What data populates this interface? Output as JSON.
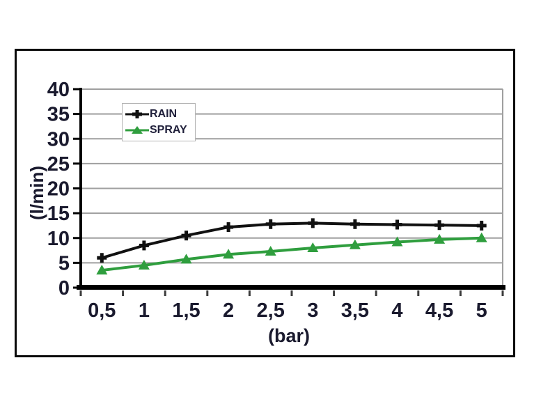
{
  "chart_data": {
    "type": "line",
    "title": "",
    "xlabel": "(bar)",
    "ylabel": "(l/min)",
    "x_tick_labels": [
      "0,5",
      "1",
      "1,5",
      "2",
      "2,5",
      "3",
      "3,5",
      "4",
      "4,5",
      "5"
    ],
    "x_values": [
      0.5,
      1,
      1.5,
      2,
      2.5,
      3,
      3.5,
      4,
      4.5,
      5
    ],
    "y_ticks": [
      0,
      5,
      10,
      15,
      20,
      25,
      30,
      35,
      40
    ],
    "ylim": [
      0,
      40
    ],
    "grid": "horizontal",
    "legend_position": "top-left-inside",
    "series": [
      {
        "name": "RAIN",
        "color": "#111111",
        "marker": "plus",
        "values": [
          6,
          8.5,
          10.5,
          12.2,
          12.8,
          13,
          12.8,
          12.7,
          12.6,
          12.5
        ]
      },
      {
        "name": "SPRAY",
        "color": "#2f9e3e",
        "marker": "triangle",
        "values": [
          3.5,
          4.5,
          5.7,
          6.7,
          7.3,
          8,
          8.6,
          9.2,
          9.7,
          10
        ]
      }
    ]
  },
  "colors": {
    "grid": "#9f9f9f",
    "axis": "#000000",
    "text": "#1a1a2e",
    "legend_border": "#b3b3b3"
  }
}
